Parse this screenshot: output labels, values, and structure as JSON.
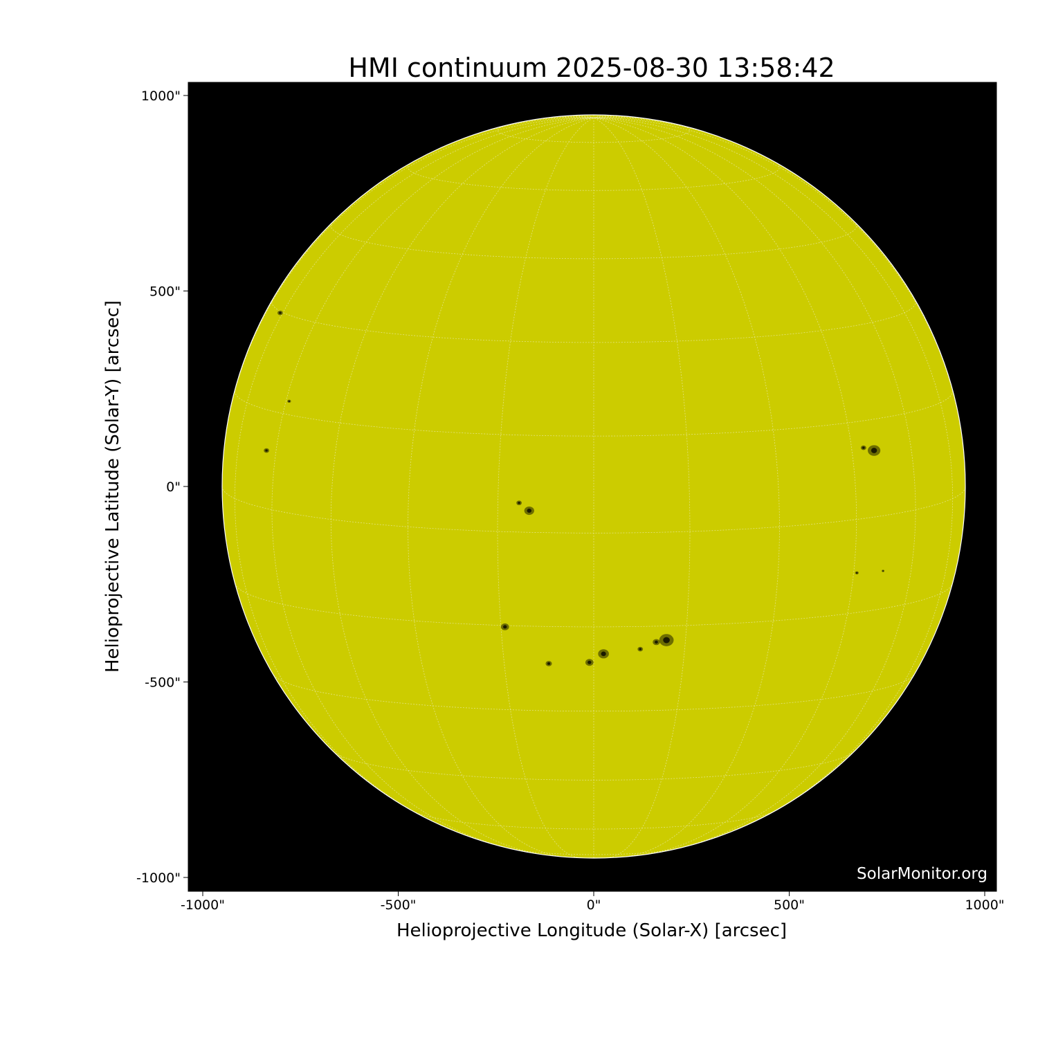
{
  "chart_data": {
    "type": "image",
    "title": "HMI continuum 2025-08-30 13:58:42",
    "xlabel": "Helioprojective Longitude (Solar-X) [arcsec]",
    "ylabel": "Helioprojective Latitude (Solar-Y) [arcsec]",
    "xlim": [
      -1037,
      1030
    ],
    "ylim": [
      -1035,
      1034
    ],
    "x_ticks": [
      {
        "value": -1000,
        "label": "-1000\""
      },
      {
        "value": -500,
        "label": "-500\""
      },
      {
        "value": 0,
        "label": "0\""
      },
      {
        "value": 500,
        "label": "500\""
      },
      {
        "value": 1000,
        "label": "1000\""
      }
    ],
    "y_ticks": [
      {
        "value": 1000,
        "label": "1000\""
      },
      {
        "value": 500,
        "label": "500\""
      },
      {
        "value": 0,
        "label": "0\""
      },
      {
        "value": -500,
        "label": "-500\""
      },
      {
        "value": -1000,
        "label": "-1000\""
      }
    ],
    "solar_radius_arcsec": 951,
    "grid": true,
    "grid_spacing_deg": 15,
    "colors": {
      "disk": "#cccc00",
      "background": "#000000",
      "spot": "#1a1a00",
      "grid": "#e8e8a0"
    },
    "sunspots": [
      {
        "x": 717,
        "y": 92,
        "size": 14
      },
      {
        "x": 690,
        "y": 99,
        "size": 6
      },
      {
        "x": -165,
        "y": -62,
        "size": 11
      },
      {
        "x": -191,
        "y": -42,
        "size": 6
      },
      {
        "x": -837,
        "y": 92,
        "size": 6
      },
      {
        "x": -802,
        "y": 444,
        "size": 6
      },
      {
        "x": -779,
        "y": 218,
        "size": 4
      },
      {
        "x": -227,
        "y": -359,
        "size": 9
      },
      {
        "x": -115,
        "y": -453,
        "size": 7
      },
      {
        "x": 186,
        "y": -393,
        "size": 16
      },
      {
        "x": 160,
        "y": -398,
        "size": 8
      },
      {
        "x": 25,
        "y": -428,
        "size": 12
      },
      {
        "x": -11,
        "y": -450,
        "size": 9
      },
      {
        "x": 119,
        "y": -416,
        "size": 6
      },
      {
        "x": 673,
        "y": -221,
        "size": 4
      },
      {
        "x": 740,
        "y": -216,
        "size": 3
      }
    ]
  },
  "watermark": "SolarMonitor.org"
}
